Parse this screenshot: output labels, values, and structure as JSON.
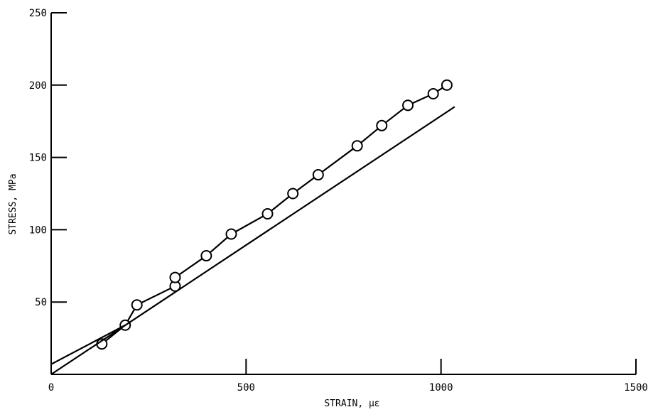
{
  "chart_data": {
    "type": "scatter",
    "xlabel": "STRAIN, µε",
    "ylabel": "STRESS, MPa",
    "xlim": [
      0,
      1500
    ],
    "ylim": [
      0,
      250
    ],
    "x_ticks": [
      0,
      500,
      1000,
      1500
    ],
    "y_ticks": [
      50,
      100,
      150,
      200,
      250
    ],
    "x_tick_labels": [
      "0",
      "500",
      "1000",
      "1500"
    ],
    "y_tick_labels": [
      "50",
      "100",
      "150",
      "200",
      "250"
    ],
    "grid": false,
    "series": [
      {
        "style": "markers-connected",
        "points": [
          {
            "x": 130,
            "y": 21
          },
          {
            "x": 190,
            "y": 34
          },
          {
            "x": 220,
            "y": 48
          },
          {
            "x": 318,
            "y": 61
          },
          {
            "x": 318,
            "y": 67
          },
          {
            "x": 398,
            "y": 82
          },
          {
            "x": 462,
            "y": 97
          },
          {
            "x": 555,
            "y": 111
          },
          {
            "x": 620,
            "y": 125
          },
          {
            "x": 685,
            "y": 138
          },
          {
            "x": 785,
            "y": 158
          },
          {
            "x": 848,
            "y": 172
          },
          {
            "x": 915,
            "y": 186
          },
          {
            "x": 980,
            "y": 194
          },
          {
            "x": 1015,
            "y": 200
          }
        ]
      },
      {
        "style": "line",
        "points": [
          {
            "x": 0,
            "y": 0
          },
          {
            "x": 1035,
            "y": 185
          }
        ]
      },
      {
        "style": "line",
        "points": [
          {
            "x": 0,
            "y": 7
          },
          {
            "x": 190,
            "y": 34
          }
        ]
      }
    ]
  }
}
